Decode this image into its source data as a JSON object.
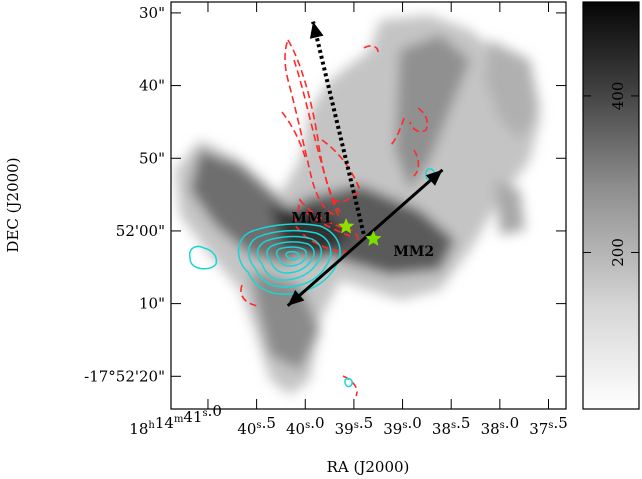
{
  "chart_data": {
    "type": "heatmap",
    "xlabel": "RA (J2000)",
    "ylabel": "DEC (J2000)",
    "x_tick_labels": [
      "18h14m41s.0",
      "40s.5",
      "40s.0",
      "39s.5",
      "39s.0",
      "38s.5",
      "38s.0",
      "37s.5"
    ],
    "x_ticks_sec": [
      41.0,
      40.5,
      40.0,
      39.5,
      39.0,
      38.5,
      38.0,
      37.5
    ],
    "y_tick_labels": [
      "30\"",
      "40\"",
      "50\"",
      "52'00\"",
      "10\"",
      "-17°52'20\""
    ],
    "y_ticks_arcsec": [
      -90,
      -100,
      -110,
      -120,
      -130,
      -140
    ],
    "xlim_sec": [
      41.38,
      37.32
    ],
    "ylim_arcsec": [
      -88.5,
      -144.5
    ],
    "colorbar": {
      "tick_labels": [
        "200",
        "400"
      ],
      "tick_values": [
        200,
        400
      ],
      "range": [
        0,
        520
      ],
      "colormap": "white-to-black"
    },
    "sources": [
      {
        "name": "MM1",
        "ra_sec": 39.58,
        "dec_arcsec": -119.4,
        "marker_color": "#8ee000"
      },
      {
        "name": "MM2",
        "ra_sec": 39.3,
        "dec_arcsec": -121.1,
        "marker_color": "#7be000"
      }
    ],
    "arrows": [
      {
        "style": "solid",
        "color": "#000000",
        "start": [
          40.18,
          -130.3
        ],
        "end": [
          38.59,
          -111.6
        ],
        "double_headed": true
      },
      {
        "style": "dotted",
        "color": "#000000",
        "start": [
          39.4,
          -120.4
        ],
        "end": [
          39.92,
          -91.2
        ],
        "double_headed": false
      }
    ],
    "contour_colors": {
      "red": "#ff2a2a",
      "cyan": "#18d6d6"
    }
  }
}
